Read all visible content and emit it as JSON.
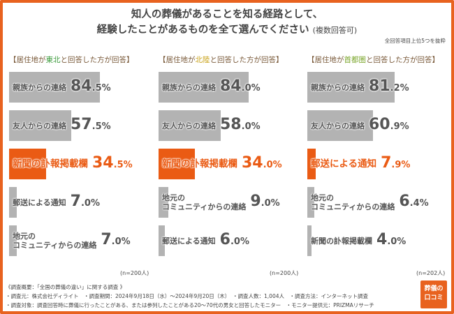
{
  "title": {
    "line1": "知人の葬儀があることを知る経路として、",
    "line2": "経験したことがあるものを全て選んでください",
    "line2_sub": "(複数回答可)"
  },
  "note": "全回答項目上位5つを抜粋",
  "chart_data": [
    {
      "type": "bar",
      "orientation": "horizontal",
      "heading": {
        "pre": "【居住地が",
        "region": "東北",
        "post": "と回答した方が回答】"
      },
      "region_color": "#3a9a3a",
      "sample": "(n=200人)",
      "unit": "%",
      "xlim": [
        0,
        100
      ],
      "categories": [
        "親族からの連絡",
        "友人からの連絡",
        "新聞の訃報掲載欄",
        "郵送による通知",
        "地元の\nコミュニティからの連絡"
      ],
      "values": [
        84.5,
        57.5,
        34.5,
        7.0,
        7.0
      ],
      "highlight": "新聞の訃報掲載欄"
    },
    {
      "type": "bar",
      "orientation": "horizontal",
      "heading": {
        "pre": "【居住地が",
        "region": "北陸",
        "post": "と回答した方が回答】"
      },
      "region_color": "#c9a21a",
      "sample": "(n=200人)",
      "unit": "%",
      "xlim": [
        0,
        100
      ],
      "categories": [
        "親族からの連絡",
        "友人からの連絡",
        "新聞の訃報掲載欄",
        "地元の\nコミュニティからの連絡",
        "郵送による通知"
      ],
      "values": [
        84.0,
        58.0,
        34.0,
        9.0,
        6.0
      ],
      "highlight": "新聞の訃報掲載欄"
    },
    {
      "type": "bar",
      "orientation": "horizontal",
      "heading": {
        "pre": "【居住地が",
        "region": "首都圏",
        "post": "と回答した方が回答】"
      },
      "region_color": "#7aa52a",
      "sample": "(n=202人)",
      "unit": "%",
      "xlim": [
        0,
        100
      ],
      "categories": [
        "親族からの連絡",
        "友人からの連絡",
        "郵送による通知",
        "地元の\nコミュニティからの連絡",
        "新聞の訃報掲載欄"
      ],
      "values": [
        81.2,
        60.9,
        7.9,
        6.4,
        4.0
      ],
      "highlight": "郵送による通知"
    }
  ],
  "colors": {
    "bar": "#b3b3b3",
    "highlight": "#ea5b14",
    "frame": "#e8621f"
  },
  "footer": [
    "《調査概要：「全国の葬儀の違い」に関する調査 》",
    "・調査元：株式会社ディライト　・調査期間：2024年9月18日（水）～2024年9月20日（木）　・調査人数：1,004人　・調査方法：インターネット調査",
    "・調査対象：調査回答時に葬儀に行ったことがある、または参列したことがある20～70代の男女と回答したモニター　・モニター提供元：PRIZMAリサーチ"
  ],
  "logo": {
    "line1": "葬儀の",
    "line2": "口コミ"
  }
}
